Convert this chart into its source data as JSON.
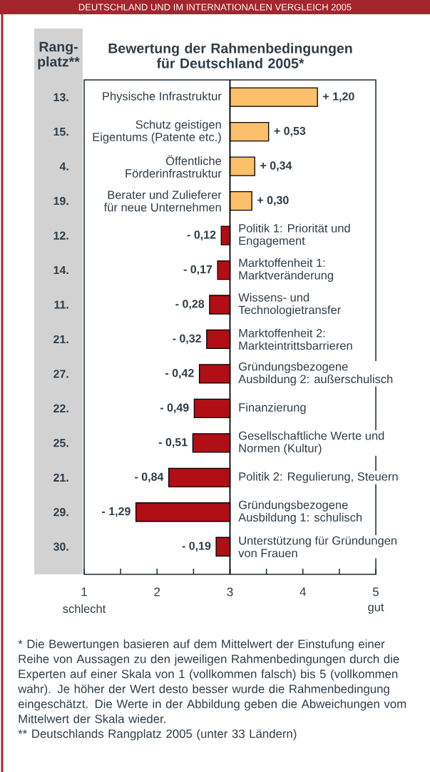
{
  "chart_data": {
    "type": "bar",
    "orientation": "horizontal",
    "title": "Bewertung der Rahmenbedingungen für Deutschland 2005*",
    "categories": [
      "Physische Infrastruktur",
      "Schutz geistigen Eigentums (Patente etc.)",
      "Öffentliche Förderinfrastruktur",
      "Berater und Zulieferer für neue Unternehmen",
      "Politik 1: Priorität und Engagement",
      "Marktoffenheit 1: Marktveränderung",
      "Wissens- und Technologietransfer",
      "Marktoffenheit 2: Markteintrittsbarrieren",
      "Gründungsbezogene Ausbildung 2: außerschulisch",
      "Finanzierung",
      "Gesellschaftliche Werte und Normen (Kultur)",
      "Politik 2: Regulierung, Steuern",
      "Gründungsbezogene Ausbildung 1: schulisch",
      "Unterstützung für Gründungen von Frauen"
    ],
    "values": [
      1.2,
      0.53,
      0.34,
      0.3,
      -0.12,
      -0.17,
      -0.28,
      -0.32,
      -0.42,
      -0.49,
      -0.51,
      -0.84,
      -1.29,
      -0.19
    ],
    "base": [
      3,
      3,
      3,
      3,
      3,
      3,
      3,
      3,
      3,
      3,
      3,
      3,
      3,
      3
    ],
    "colors": [
      "#fbbf6a",
      "#fbbf6a",
      "#fbbf6a",
      "#fbbf6a",
      "#b20e16",
      "#b20e16",
      "#b20e16",
      "#b20e16",
      "#b20e16",
      "#b20e16",
      "#b20e16",
      "#b20e16",
      "#b20e16",
      "#b20e16"
    ],
    "value_labels": [
      "+ 1,20",
      "+ 0,53",
      "+ 0,34",
      "+ 0,30",
      "- 0,12",
      "- 0,17",
      "- 0,28",
      "- 0,32",
      "- 0,42",
      "- 0,49",
      "- 0,51",
      "- 0,84",
      "- 1,29",
      "- 0,19"
    ],
    "xlim": [
      1,
      5
    ],
    "xticks": [
      1,
      {
        "value": 1.5,
        "label": null
      },
      2,
      {
        "value": 2.5,
        "label": null
      },
      3,
      {
        "value": 3.5,
        "label": null
      },
      4,
      {
        "value": 4.5,
        "label": null
      },
      5
    ],
    "ref_lines": [
      {
        "axis": "x",
        "value": 3,
        "color": "#000000"
      }
    ],
    "annotations": [
      "DEUTSCHLAND UND IM INTERNATIONALEN VERGLEICH 2005",
      "Rang-platz**",
      "13.",
      "15.",
      "4.",
      "19.",
      "12.",
      "14.",
      "11.",
      "21.",
      "27.",
      "22.",
      "25.",
      "21.",
      "29.",
      "30.",
      "schlecht",
      "gut",
      "* Die Bewertungen basieren auf dem Mittelwert der Einstufung einer Reihe von Aussagen zu den jeweiligen Rahmenbedingungen durch die Experten auf einer Skala von 1 (vollkommen falsch) bis 5 (vollkommen wahr). Je höher der Wert desto besser wurde die Rahmenbedingung eingeschätzt. Die Werte in der Abbildung geben die Abweichungen vom Mittelwert der Skala wieder.",
      "** Deutschlands Rangplatz 2005 (unter 33 Ländern)"
    ]
  }
}
